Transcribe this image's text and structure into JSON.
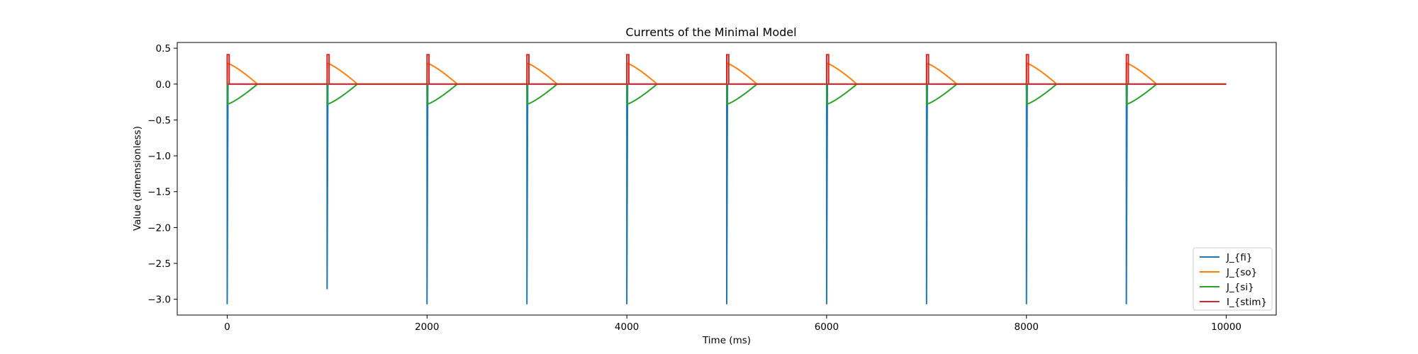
{
  "chart_data": {
    "type": "line",
    "title": "Currents of the Minimal Model",
    "xlabel": "Time (ms)",
    "ylabel": "Value (dimensionless)",
    "xlim": [
      -500,
      10500
    ],
    "ylim": [
      -3.22,
      0.58
    ],
    "xticks": [
      0,
      2000,
      4000,
      6000,
      8000,
      10000
    ],
    "xtick_labels": [
      "0",
      "2000",
      "4000",
      "6000",
      "8000",
      "10000"
    ],
    "yticks": [
      0.5,
      0.0,
      -0.5,
      -1.0,
      -1.5,
      -2.0,
      -2.5,
      -3.0
    ],
    "ytick_labels": [
      "0.5",
      "0.0",
      "−0.5",
      "−1.0",
      "−1.5",
      "−2.0",
      "−2.5",
      "−3.0"
    ],
    "grid": false,
    "legend_position": "bottom-right",
    "stim_times": [
      0,
      1000,
      2000,
      3000,
      4000,
      5000,
      6000,
      7000,
      8000,
      9000
    ],
    "x_end": 10000,
    "series": [
      {
        "name": "J_{fi}",
        "color": "#1f77b4",
        "spike_minima": [
          -3.07,
          -2.86,
          -3.07,
          -3.07,
          -3.07,
          -3.07,
          -3.07,
          -3.07,
          -3.07,
          -3.07
        ]
      },
      {
        "name": "J_{so}",
        "color": "#ff7f0e",
        "pulse_peak": 0.29,
        "pulse_duration": 300
      },
      {
        "name": "J_{si}",
        "color": "#2ca02c",
        "pulse_peak": -0.28,
        "pulse_duration": 300
      },
      {
        "name": "I_{stim}",
        "color": "#d62728",
        "pulse_peak": 0.41,
        "pulse_duration": 20
      }
    ]
  }
}
